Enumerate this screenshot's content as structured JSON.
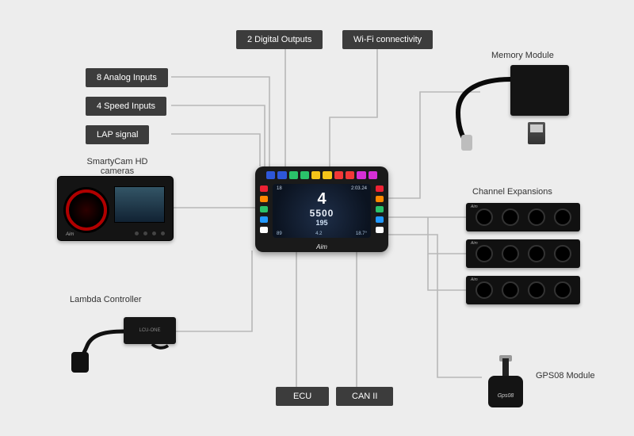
{
  "type": "connection-diagram",
  "background_color": "#ededed",
  "label_box_color": "#3c3c3c",
  "label_text_color": "#ffffff",
  "wire_color": "#b8b8b8",
  "labels": {
    "digital_outputs": "2 Digital Outputs",
    "wifi": "Wi-Fi connectivity",
    "analog_inputs": "8 Analog Inputs",
    "speed_inputs": "4 Speed Inputs",
    "lap_signal": "LAP signal",
    "ecu": "ECU",
    "can2": "CAN II",
    "memory_module": "Memory Module",
    "smartycam": "SmartyCam HD\ncameras",
    "channel_expansions": "Channel Expansions",
    "lambda": "Lambda Controller",
    "gps": "GPS08 Module"
  },
  "dash": {
    "brand": "Aim",
    "top_led_colors": [
      "#2e57d8",
      "#2e57d8",
      "#2ac26a",
      "#2ac26a",
      "#f4c419",
      "#f4c419",
      "#f23838",
      "#f23838",
      "#d62fd6",
      "#d62fd6"
    ],
    "side_left_colors": [
      "#e23",
      "#f80",
      "#2ac26a",
      "#29f",
      "#fff"
    ],
    "side_right_colors": [
      "#e23",
      "#f80",
      "#2ac26a",
      "#29f",
      "#fff"
    ],
    "tl": "18",
    "tr": "2:03.24",
    "gear": "4",
    "rpm": "5500",
    "speed": "195",
    "bl": "89",
    "bm": "4.2",
    "br": "18.7°"
  },
  "lambda_body": "LCU-ONE",
  "gps_body": "Gps08",
  "channel_expansion": {
    "ports": 4,
    "count": 3
  },
  "brand_tag": "Aim"
}
